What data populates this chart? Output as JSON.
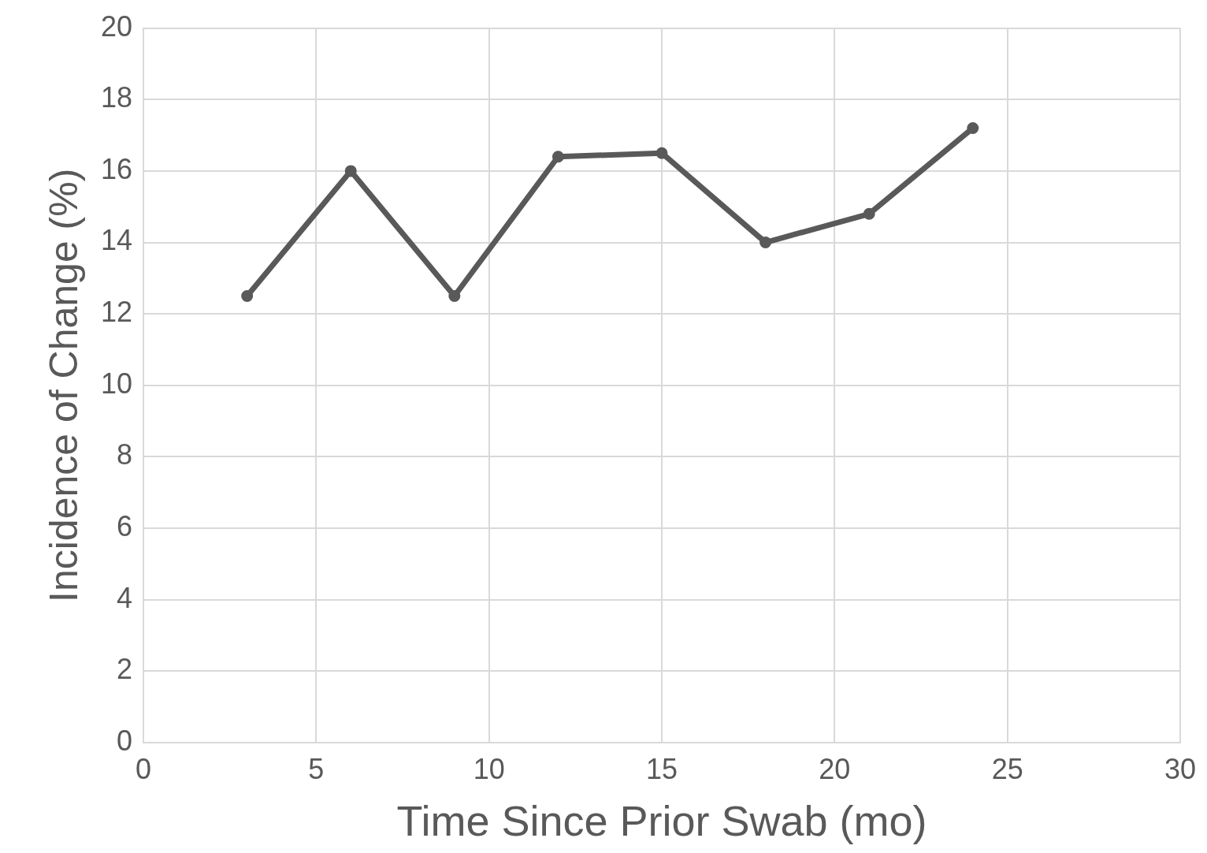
{
  "chart_data": {
    "type": "line",
    "xlabel": "Time Since Prior Swab (mo)",
    "ylabel": "Incidence of Change (%)",
    "x": [
      3,
      6,
      9,
      12,
      15,
      18,
      21,
      24
    ],
    "series": [
      {
        "color": "#595959",
        "values": [
          12.5,
          16.0,
          12.5,
          16.4,
          16.5,
          14.0,
          14.8,
          17.2
        ]
      }
    ],
    "xlim": [
      0,
      30
    ],
    "xticks": [
      0,
      5,
      10,
      15,
      20,
      25,
      30
    ],
    "ylim": [
      0,
      20
    ],
    "yticks": [
      0,
      2,
      4,
      6,
      8,
      10,
      12,
      14,
      16,
      18,
      20
    ],
    "grid": true,
    "legend": false,
    "marker": "circle",
    "line_style": "solid"
  }
}
